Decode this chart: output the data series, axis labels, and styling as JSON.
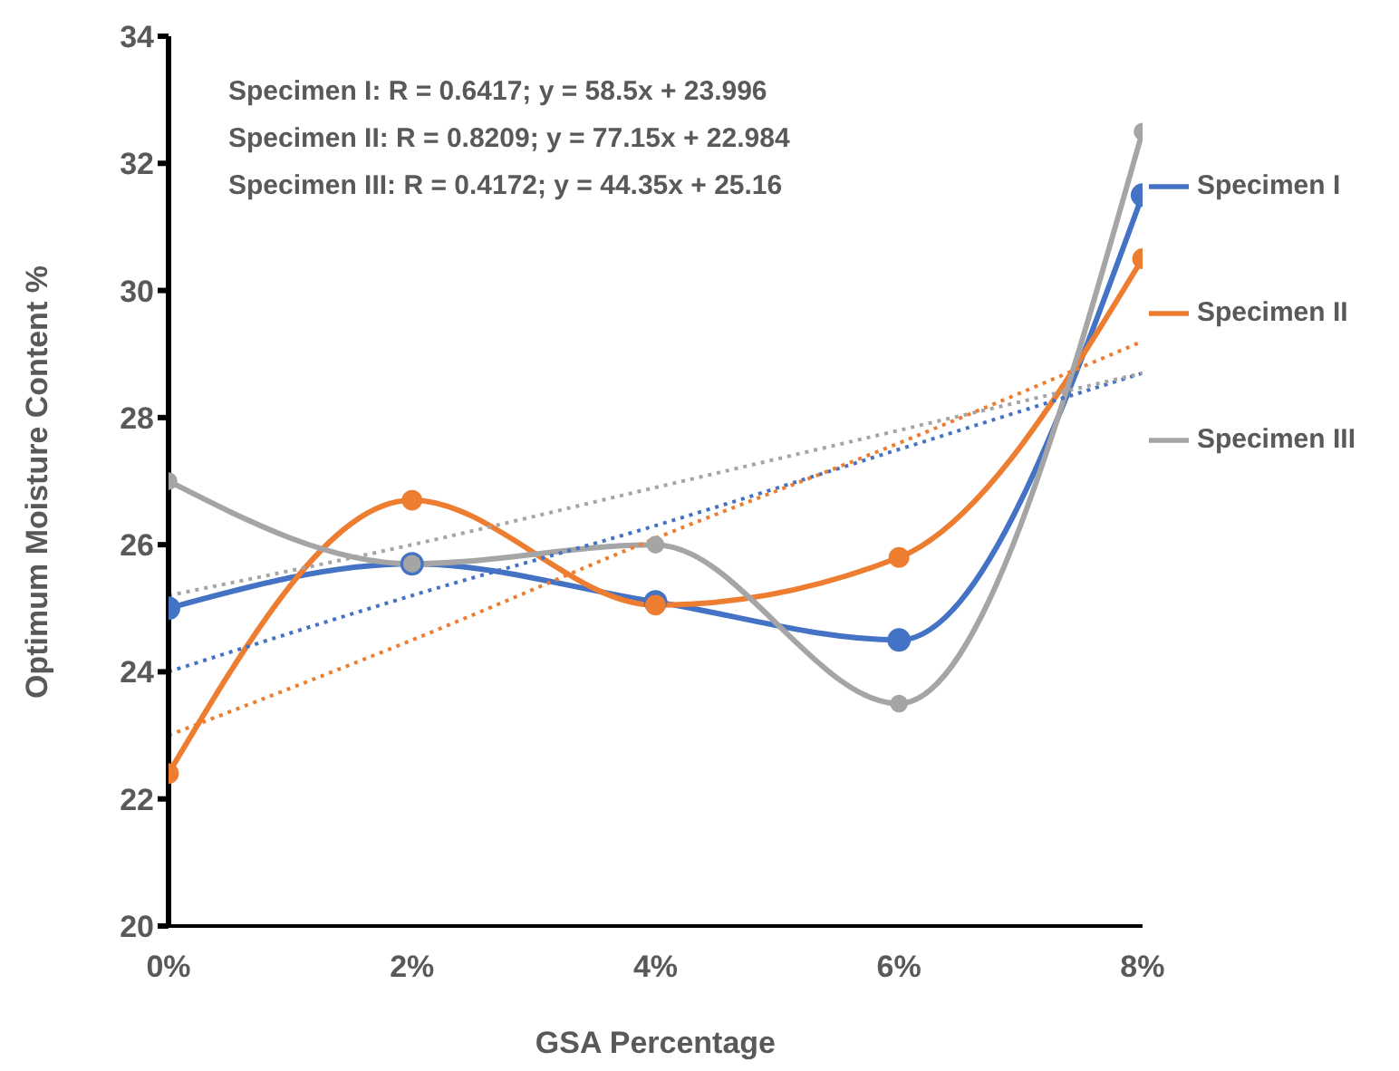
{
  "chart_data": {
    "type": "line",
    "xlabel": "GSA Percentage",
    "ylabel": "Optimum Moisture Content %",
    "x": [
      0,
      0.02,
      0.04,
      0.06,
      0.08
    ],
    "xlim": [
      0,
      0.08
    ],
    "xticks": [
      {
        "value": 0,
        "label": "0%"
      },
      {
        "value": 0.02,
        "label": "2%"
      },
      {
        "value": 0.04,
        "label": "4%"
      },
      {
        "value": 0.06,
        "label": "6%"
      },
      {
        "value": 0.08,
        "label": "8%"
      }
    ],
    "ylim": [
      20,
      34
    ],
    "yticks": [
      20,
      22,
      24,
      26,
      28,
      30,
      32,
      34
    ],
    "grid": false,
    "legend": "right",
    "marker": "circle",
    "line_style": "solid",
    "series": [
      {
        "name": "Specimen I",
        "color": "#4472c4",
        "values": [
          25.0,
          25.7,
          25.1,
          24.5,
          31.5
        ]
      },
      {
        "name": "Specimen II",
        "color": "#ed7d31",
        "values": [
          22.4,
          26.7,
          25.05,
          25.8,
          30.5
        ]
      },
      {
        "name": "Specimen III",
        "color": "#a5a5a5",
        "values": [
          27.0,
          25.7,
          26.0,
          23.5,
          32.5
        ]
      },
      {
        "type": "line",
        "color": "#4472c4",
        "values": [
          24.0,
          25.2,
          26.3,
          27.5,
          28.7
        ],
        "marker": "none",
        "line_style": "dotted"
      },
      {
        "type": "line",
        "color": "#ed7d31",
        "values": [
          23.0,
          24.5,
          26.1,
          27.6,
          29.2
        ],
        "marker": "none",
        "line_style": "dotted"
      },
      {
        "type": "line",
        "color": "#a5a5a5",
        "values": [
          25.2,
          26.0,
          26.9,
          27.8,
          28.7
        ],
        "marker": "none",
        "line_style": "dotted"
      }
    ],
    "annotations": [
      "Specimen I: R = 0.6417; y = 58.5x + 23.996",
      "Specimen II: R = 0.8209; y = 77.15x + 22.984",
      "Specimen III: R = 0.4172; y = 44.35x + 25.16"
    ]
  }
}
